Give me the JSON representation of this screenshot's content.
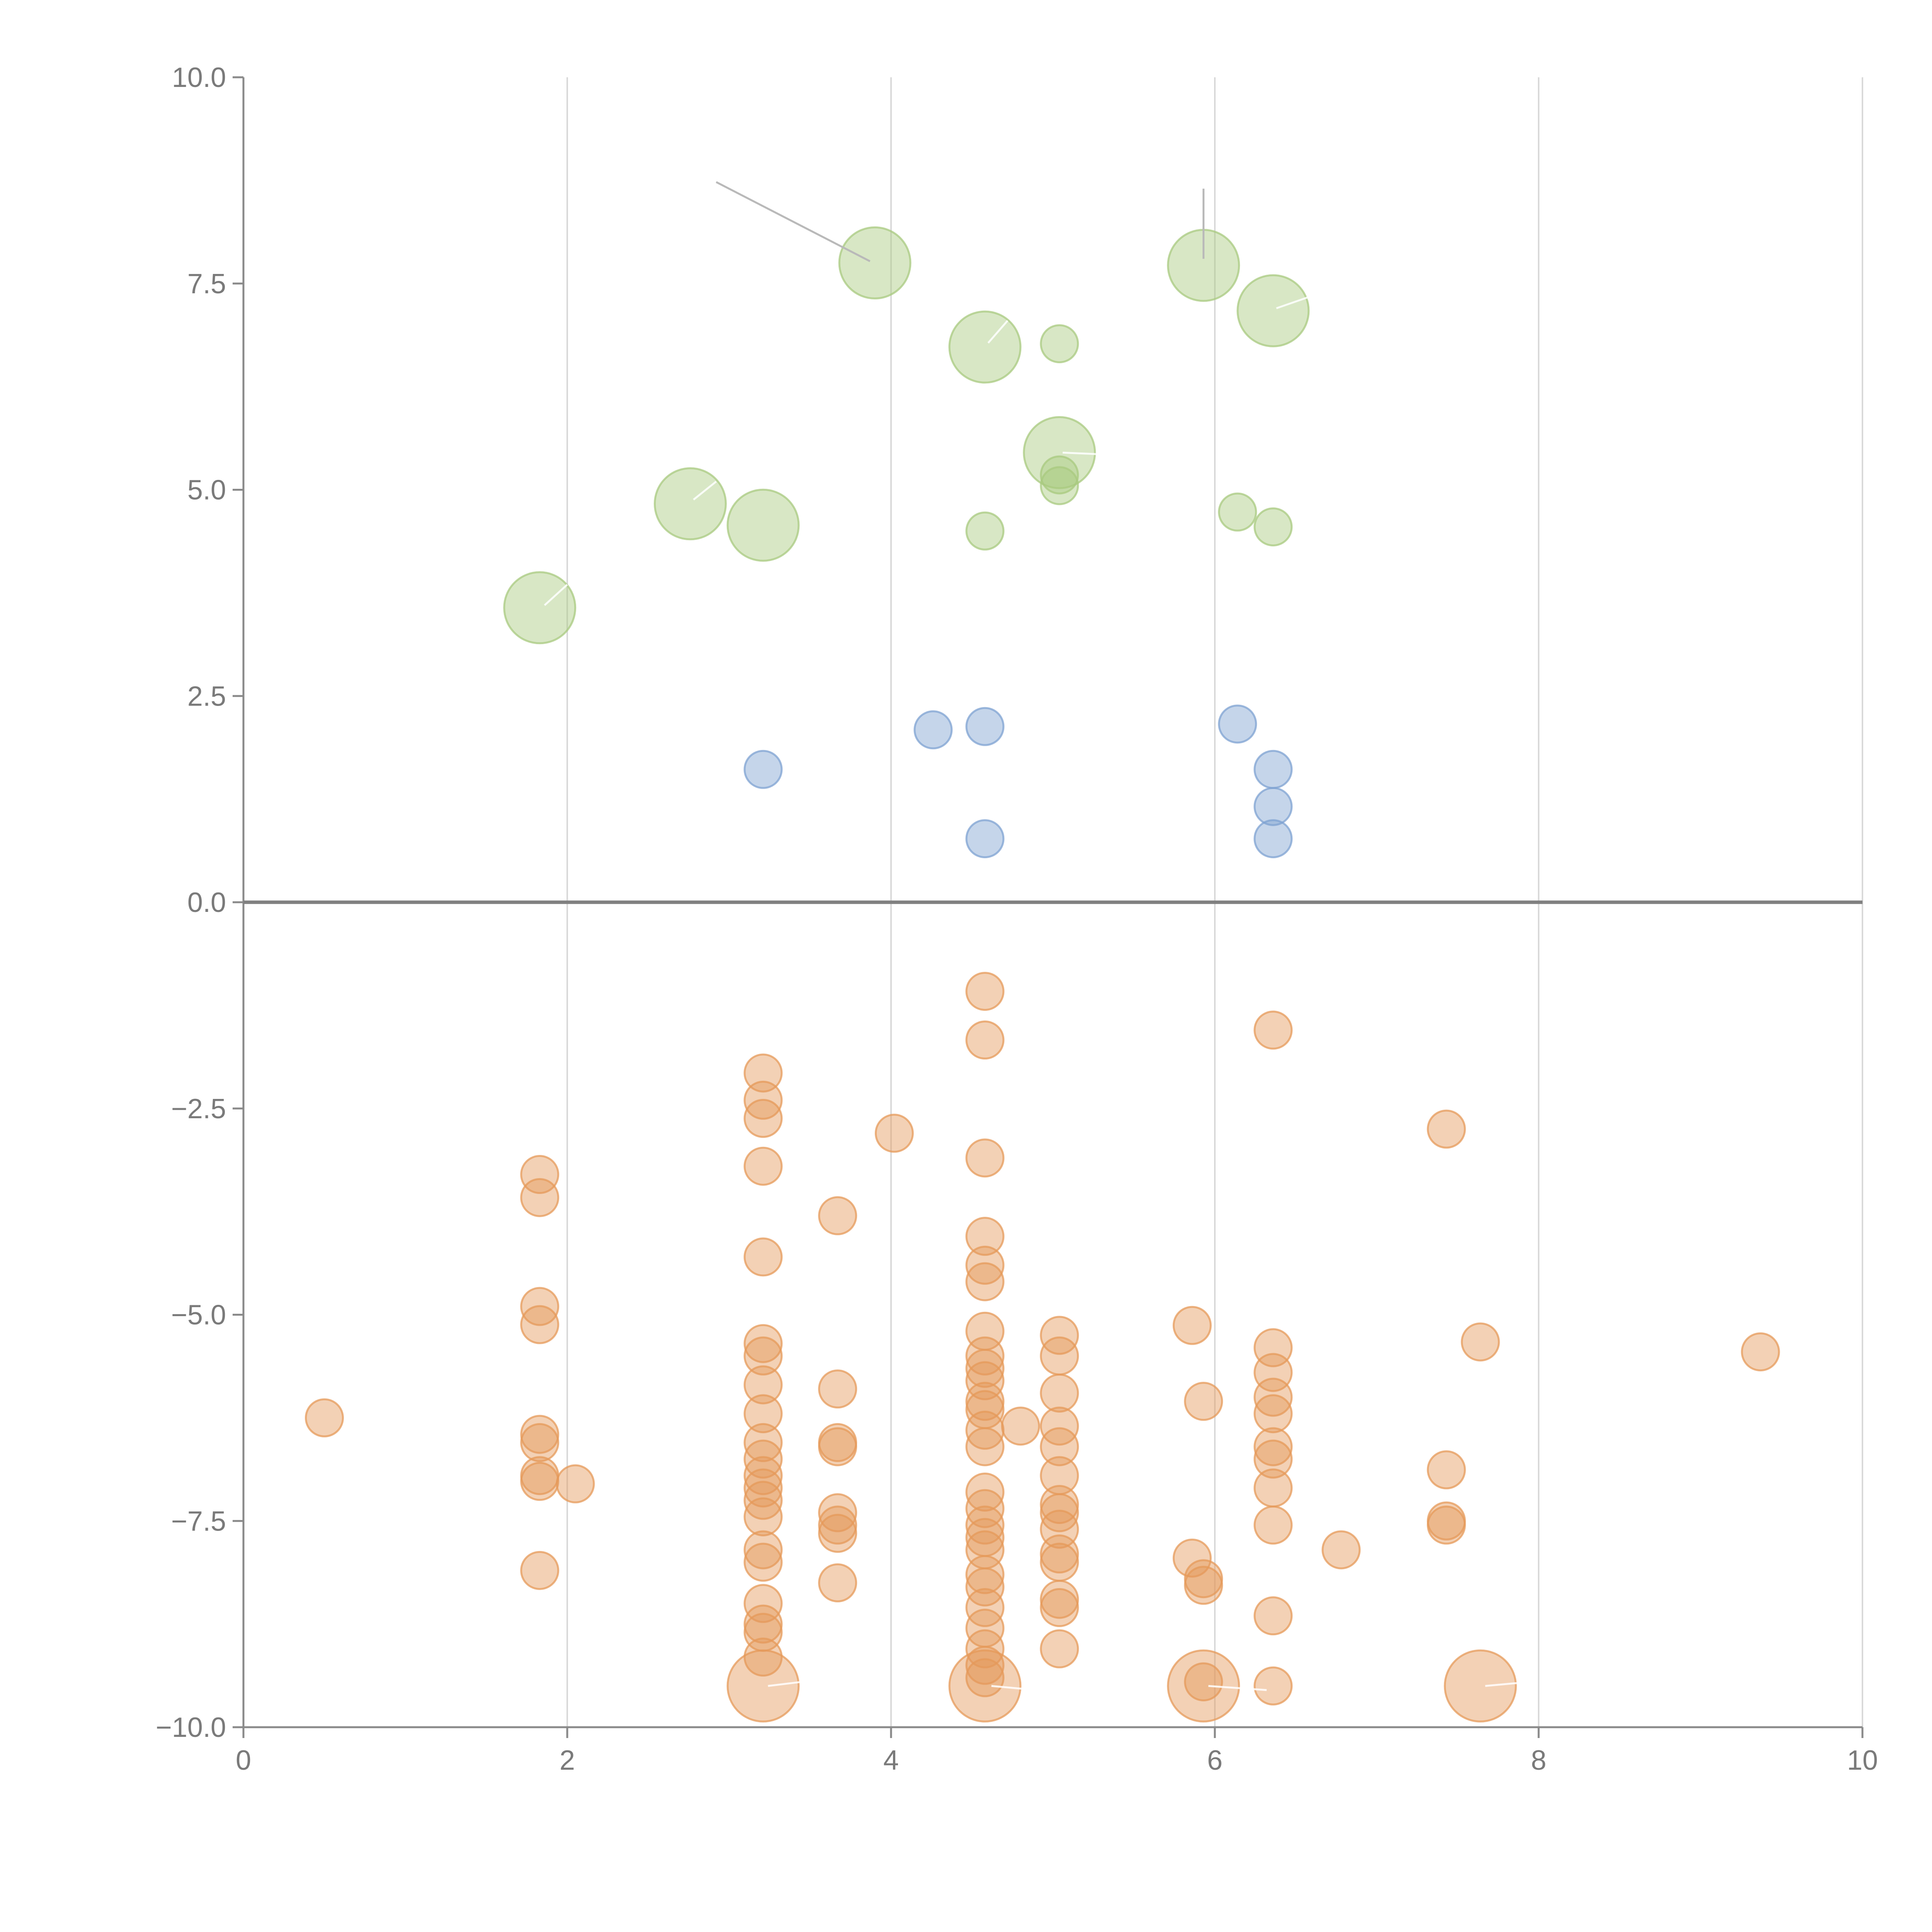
{
  "chart_data": {
    "type": "scatter",
    "title": "",
    "xlabel": "",
    "ylabel": "",
    "xlim": [
      0,
      10
    ],
    "ylim": [
      -10,
      10
    ],
    "grid": "vertical",
    "x_ticks": [
      0,
      2,
      4,
      6,
      8,
      10
    ],
    "x_tick_labels": [
      "0",
      "2",
      "4",
      "6",
      "8",
      "10"
    ],
    "y_ticks": [
      10,
      7.5,
      5,
      2.5,
      0,
      -2.5,
      -5,
      -7.5,
      -10
    ],
    "y_tick_labels": [
      "10.0",
      "7.5",
      "5.0",
      "2.5",
      "0.0",
      "−2.5",
      "−5.0",
      "−7.5",
      "−10.0"
    ],
    "reference_line_y": 0,
    "series": [
      {
        "name": "green",
        "color": "#a8c97f",
        "points": [
          [
            1.83,
            3.57,
            2
          ],
          [
            2.76,
            4.83,
            2
          ],
          [
            3.21,
            4.57,
            2
          ],
          [
            3.9,
            7.75,
            2
          ],
          [
            4.58,
            6.73,
            2
          ],
          [
            4.58,
            4.5,
            1
          ],
          [
            5.04,
            6.77,
            1
          ],
          [
            5.04,
            5.45,
            2
          ],
          [
            5.04,
            5.18,
            1
          ],
          [
            5.04,
            5.05,
            1
          ],
          [
            5.93,
            7.72,
            2
          ],
          [
            6.14,
            4.73,
            1
          ],
          [
            6.36,
            7.17,
            2
          ],
          [
            6.36,
            4.55,
            1
          ]
        ]
      },
      {
        "name": "blue",
        "color": "#7ea1d1",
        "points": [
          [
            3.21,
            1.61,
            1
          ],
          [
            4.26,
            2.09,
            1
          ],
          [
            4.58,
            2.13,
            1
          ],
          [
            4.58,
            0.77,
            1
          ],
          [
            6.14,
            2.16,
            1
          ],
          [
            6.36,
            1.61,
            1
          ],
          [
            6.36,
            1.16,
            1
          ],
          [
            6.36,
            0.77,
            1
          ]
        ]
      },
      {
        "name": "orange",
        "color": "#e59a5a",
        "points": [
          [
            0.5,
            -6.25,
            1
          ],
          [
            1.83,
            -3.3,
            1
          ],
          [
            1.83,
            -3.58,
            1
          ],
          [
            1.83,
            -4.9,
            1
          ],
          [
            1.83,
            -5.12,
            1
          ],
          [
            1.83,
            -6.45,
            1
          ],
          [
            1.83,
            -6.55,
            1
          ],
          [
            1.83,
            -6.95,
            1
          ],
          [
            1.83,
            -7.02,
            1
          ],
          [
            1.83,
            -8.1,
            1
          ],
          [
            2.05,
            -7.05,
            1
          ],
          [
            3.21,
            -2.07,
            1
          ],
          [
            3.21,
            -2.4,
            1
          ],
          [
            3.21,
            -2.62,
            1
          ],
          [
            3.21,
            -3.2,
            1
          ],
          [
            3.21,
            -4.3,
            1
          ],
          [
            3.21,
            -5.35,
            1
          ],
          [
            3.21,
            -5.5,
            1
          ],
          [
            3.21,
            -5.85,
            1
          ],
          [
            3.21,
            -6.2,
            1
          ],
          [
            3.21,
            -6.55,
            1
          ],
          [
            3.21,
            -6.75,
            1
          ],
          [
            3.21,
            -6.95,
            1
          ],
          [
            3.21,
            -7.1,
            1
          ],
          [
            3.21,
            -7.25,
            1
          ],
          [
            3.21,
            -7.45,
            1
          ],
          [
            3.21,
            -7.85,
            1
          ],
          [
            3.21,
            -8.0,
            1
          ],
          [
            3.21,
            -8.5,
            1
          ],
          [
            3.21,
            -8.75,
            1
          ],
          [
            3.21,
            -8.85,
            1
          ],
          [
            3.21,
            -9.15,
            1
          ],
          [
            3.21,
            -9.5,
            2
          ],
          [
            3.67,
            -3.8,
            1
          ],
          [
            3.67,
            -5.9,
            1
          ],
          [
            3.67,
            -6.55,
            1
          ],
          [
            3.67,
            -6.6,
            1
          ],
          [
            3.67,
            -7.4,
            1
          ],
          [
            3.67,
            -7.55,
            1
          ],
          [
            3.67,
            -7.65,
            1
          ],
          [
            3.67,
            -8.25,
            1
          ],
          [
            4.02,
            -2.8,
            1
          ],
          [
            4.58,
            -1.08,
            1
          ],
          [
            4.58,
            -1.67,
            1
          ],
          [
            4.58,
            -3.1,
            1
          ],
          [
            4.58,
            -4.05,
            1
          ],
          [
            4.58,
            -4.4,
            1
          ],
          [
            4.58,
            -4.6,
            1
          ],
          [
            4.58,
            -5.2,
            1
          ],
          [
            4.58,
            -5.5,
            1
          ],
          [
            4.58,
            -5.65,
            1
          ],
          [
            4.58,
            -5.8,
            1
          ],
          [
            4.58,
            -6.05,
            1
          ],
          [
            4.58,
            -6.15,
            1
          ],
          [
            4.58,
            -6.4,
            1
          ],
          [
            4.58,
            -6.6,
            1
          ],
          [
            4.58,
            -7.15,
            1
          ],
          [
            4.58,
            -7.35,
            1
          ],
          [
            4.58,
            -7.55,
            1
          ],
          [
            4.58,
            -7.7,
            1
          ],
          [
            4.58,
            -7.85,
            1
          ],
          [
            4.58,
            -8.15,
            1
          ],
          [
            4.58,
            -8.3,
            1
          ],
          [
            4.58,
            -8.55,
            1
          ],
          [
            4.58,
            -8.8,
            1
          ],
          [
            4.58,
            -9.05,
            1
          ],
          [
            4.58,
            -9.25,
            1
          ],
          [
            4.58,
            -9.4,
            1
          ],
          [
            4.58,
            -9.5,
            2
          ],
          [
            4.8,
            -6.35,
            1
          ],
          [
            5.04,
            -5.25,
            1
          ],
          [
            5.04,
            -5.5,
            1
          ],
          [
            5.04,
            -5.95,
            1
          ],
          [
            5.04,
            -6.35,
            1
          ],
          [
            5.04,
            -6.6,
            1
          ],
          [
            5.04,
            -6.95,
            1
          ],
          [
            5.04,
            -7.3,
            1
          ],
          [
            5.04,
            -7.4,
            1
          ],
          [
            5.04,
            -7.6,
            1
          ],
          [
            5.04,
            -7.9,
            1
          ],
          [
            5.04,
            -8.0,
            1
          ],
          [
            5.04,
            -8.45,
            1
          ],
          [
            5.04,
            -8.55,
            1
          ],
          [
            5.04,
            -9.05,
            1
          ],
          [
            5.86,
            -5.13,
            1
          ],
          [
            5.86,
            -7.95,
            1
          ],
          [
            5.93,
            -6.05,
            1
          ],
          [
            5.93,
            -8.2,
            1
          ],
          [
            5.93,
            -8.28,
            1
          ],
          [
            5.93,
            -9.45,
            1
          ],
          [
            5.93,
            -9.5,
            2
          ],
          [
            6.36,
            -1.55,
            1
          ],
          [
            6.36,
            -5.4,
            1
          ],
          [
            6.36,
            -5.7,
            1
          ],
          [
            6.36,
            -6.0,
            1
          ],
          [
            6.36,
            -6.2,
            1
          ],
          [
            6.36,
            -6.6,
            1
          ],
          [
            6.36,
            -6.75,
            1
          ],
          [
            6.36,
            -7.1,
            1
          ],
          [
            6.36,
            -7.55,
            1
          ],
          [
            6.36,
            -8.65,
            1
          ],
          [
            6.36,
            -9.5,
            1
          ],
          [
            6.78,
            -7.85,
            1
          ],
          [
            7.43,
            -2.75,
            1
          ],
          [
            7.43,
            -6.88,
            1
          ],
          [
            7.43,
            -7.5,
            1
          ],
          [
            7.43,
            -7.55,
            1
          ],
          [
            7.64,
            -5.33,
            1
          ],
          [
            7.64,
            -9.5,
            2
          ],
          [
            9.37,
            -5.45,
            1
          ]
        ]
      }
    ]
  }
}
